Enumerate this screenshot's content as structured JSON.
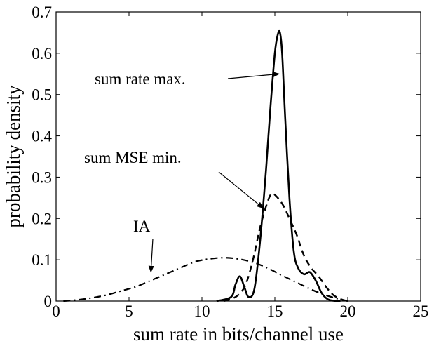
{
  "chart_data": {
    "type": "line",
    "xlabel": "sum rate in bits/channel use",
    "ylabel": "probability density",
    "xlim": [
      0,
      25
    ],
    "ylim": [
      0,
      0.7
    ],
    "xticks": [
      "0",
      "5",
      "10",
      "15",
      "20",
      "25"
    ],
    "yticks": [
      "0",
      "0.1",
      "0.2",
      "0.3",
      "0.4",
      "0.5",
      "0.6",
      "0.7"
    ],
    "grid": false,
    "legend": "none",
    "series": [
      {
        "name": "sum rate max.",
        "style": "solid",
        "color": "#000000",
        "x": [
          11.0,
          12.0,
          12.3,
          12.6,
          12.9,
          13.2,
          13.6,
          14.0,
          14.4,
          14.7,
          15.0,
          15.2,
          15.35,
          15.5,
          15.7,
          16.0,
          16.3,
          16.6,
          17.0,
          17.4,
          17.8,
          18.2,
          18.6,
          19.0,
          19.5
        ],
        "y": [
          0.0,
          0.01,
          0.04,
          0.06,
          0.035,
          0.01,
          0.03,
          0.15,
          0.32,
          0.47,
          0.6,
          0.645,
          0.65,
          0.6,
          0.45,
          0.25,
          0.12,
          0.08,
          0.065,
          0.07,
          0.05,
          0.02,
          0.005,
          0.001,
          0.0
        ]
      },
      {
        "name": "sum MSE min.",
        "style": "dashed",
        "color": "#000000",
        "x": [
          11.5,
          12.0,
          12.5,
          13.0,
          13.5,
          14.0,
          14.5,
          14.8,
          15.2,
          15.6,
          16.0,
          16.5,
          17.0,
          17.5,
          18.0,
          18.5,
          19.0,
          19.5,
          20.0
        ],
        "y": [
          0.0,
          0.005,
          0.015,
          0.04,
          0.1,
          0.18,
          0.24,
          0.26,
          0.25,
          0.23,
          0.2,
          0.16,
          0.11,
          0.08,
          0.06,
          0.035,
          0.015,
          0.005,
          0.0
        ]
      },
      {
        "name": "IA",
        "style": "dashdot",
        "color": "#000000",
        "x": [
          0.5,
          1.5,
          2.5,
          3.5,
          4.5,
          5.5,
          6.5,
          7.5,
          8.5,
          9.5,
          10.5,
          11.5,
          12.5,
          13.5,
          14.5,
          15.5,
          16.5,
          17.5,
          18.5,
          19.5,
          20.0
        ],
        "y": [
          0.0,
          0.003,
          0.008,
          0.015,
          0.025,
          0.035,
          0.05,
          0.065,
          0.08,
          0.095,
          0.102,
          0.105,
          0.102,
          0.094,
          0.08,
          0.062,
          0.045,
          0.028,
          0.014,
          0.004,
          0.0
        ]
      }
    ],
    "annotations": [
      {
        "text": "sum rate max.",
        "target_x": 15.3,
        "target_y": 0.55
      },
      {
        "text": "sum MSE min.",
        "target_x": 14.2,
        "target_y": 0.225
      },
      {
        "text": "IA",
        "target_x": 6.5,
        "target_y": 0.07
      }
    ]
  }
}
